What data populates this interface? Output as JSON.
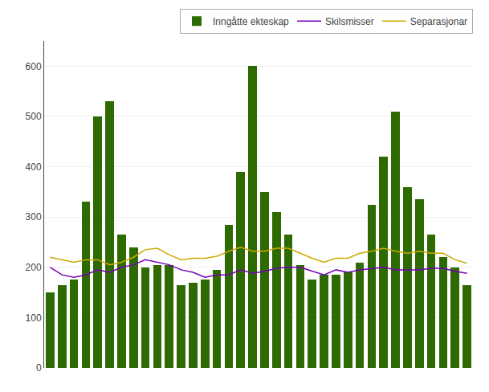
{
  "chart_data": {
    "type": "bar",
    "categories": [
      null,
      null,
      null,
      null,
      null,
      null,
      null,
      null,
      null,
      null,
      null,
      null,
      null,
      null,
      null,
      null,
      null,
      null,
      null,
      null,
      null,
      null,
      null,
      null,
      null,
      null,
      null,
      null,
      null,
      null,
      null,
      null,
      null,
      null,
      null,
      null
    ],
    "series": [
      {
        "name": "Inngåtte ekteskap",
        "type": "bar",
        "color": "#2d6a00",
        "values": [
          150,
          165,
          175,
          330,
          500,
          530,
          265,
          240,
          200,
          205,
          205,
          165,
          170,
          175,
          195,
          285,
          390,
          600,
          350,
          310,
          265,
          205,
          175,
          185,
          185,
          190,
          210,
          325,
          420,
          510,
          360,
          335,
          265,
          220,
          200,
          165
        ]
      },
      {
        "name": "Skilsmisser",
        "type": "line",
        "color": "#7700bb",
        "values": [
          200,
          185,
          180,
          185,
          195,
          190,
          200,
          205,
          215,
          210,
          205,
          195,
          190,
          180,
          185,
          185,
          195,
          188,
          192,
          198,
          200,
          200,
          192,
          185,
          195,
          190,
          195,
          198,
          200,
          195,
          195,
          195,
          198,
          198,
          192,
          188
        ]
      },
      {
        "name": "Separasjonar",
        "type": "line",
        "color": "#ccaa00",
        "values": [
          220,
          215,
          210,
          215,
          215,
          205,
          210,
          220,
          235,
          238,
          225,
          215,
          218,
          218,
          222,
          232,
          240,
          232,
          232,
          238,
          238,
          228,
          218,
          210,
          218,
          218,
          228,
          232,
          238,
          232,
          228,
          232,
          228,
          228,
          215,
          208
        ]
      }
    ],
    "ylim": [
      0,
      650
    ],
    "yticks": [
      0,
      100,
      200,
      300,
      400,
      500,
      600
    ],
    "grid": true,
    "legend": "upper right",
    "tick_labels": "y"
  }
}
